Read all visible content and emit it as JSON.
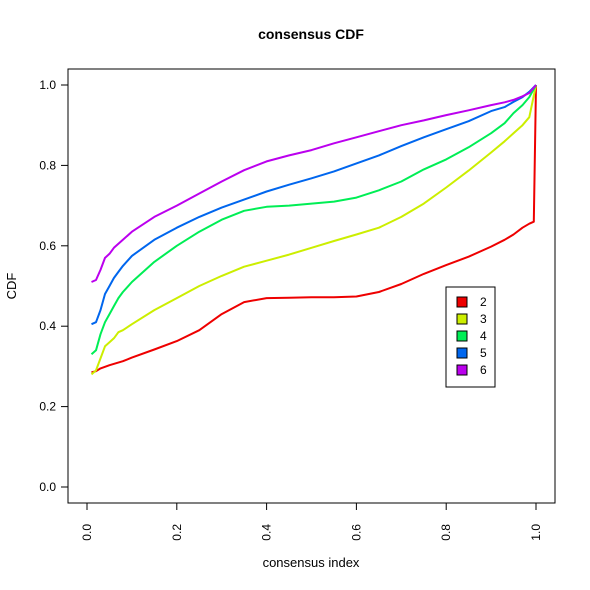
{
  "chart_data": {
    "type": "line",
    "title": "consensus CDF",
    "xlabel": "consensus index",
    "ylabel": "CDF",
    "xlim": [
      0,
      1
    ],
    "ylim": [
      0,
      1
    ],
    "x_ticks": [
      "0.0",
      "0.2",
      "0.4",
      "0.6",
      "0.8",
      "1.0"
    ],
    "y_ticks": [
      "0.0",
      "0.2",
      "0.4",
      "0.6",
      "0.8",
      "1.0"
    ],
    "grid": false,
    "legend_position": "right",
    "series": [
      {
        "name": "2",
        "color": "#ee0000",
        "x": [
          0.01,
          0.02,
          0.03,
          0.05,
          0.08,
          0.1,
          0.15,
          0.2,
          0.25,
          0.3,
          0.35,
          0.4,
          0.45,
          0.5,
          0.55,
          0.6,
          0.65,
          0.7,
          0.75,
          0.8,
          0.85,
          0.9,
          0.93,
          0.95,
          0.97,
          0.985,
          0.995,
          1.0
        ],
        "y": [
          0.285,
          0.288,
          0.295,
          0.303,
          0.313,
          0.322,
          0.342,
          0.363,
          0.39,
          0.43,
          0.46,
          0.47,
          0.471,
          0.472,
          0.472,
          0.474,
          0.485,
          0.505,
          0.53,
          0.552,
          0.573,
          0.598,
          0.615,
          0.628,
          0.645,
          0.655,
          0.66,
          1.0
        ]
      },
      {
        "name": "3",
        "color": "#ccee00",
        "x": [
          0.01,
          0.02,
          0.03,
          0.04,
          0.05,
          0.06,
          0.07,
          0.08,
          0.1,
          0.15,
          0.2,
          0.25,
          0.3,
          0.35,
          0.4,
          0.45,
          0.5,
          0.55,
          0.6,
          0.65,
          0.7,
          0.75,
          0.8,
          0.85,
          0.9,
          0.93,
          0.95,
          0.97,
          0.985,
          1.0
        ],
        "y": [
          0.28,
          0.29,
          0.32,
          0.35,
          0.36,
          0.37,
          0.385,
          0.39,
          0.405,
          0.44,
          0.47,
          0.5,
          0.525,
          0.548,
          0.563,
          0.578,
          0.595,
          0.612,
          0.628,
          0.645,
          0.672,
          0.705,
          0.745,
          0.787,
          0.832,
          0.86,
          0.88,
          0.9,
          0.92,
          1.0
        ]
      },
      {
        "name": "4",
        "color": "#00ee55",
        "x": [
          0.01,
          0.02,
          0.03,
          0.04,
          0.05,
          0.06,
          0.07,
          0.08,
          0.1,
          0.15,
          0.2,
          0.25,
          0.3,
          0.35,
          0.4,
          0.45,
          0.5,
          0.55,
          0.6,
          0.65,
          0.7,
          0.75,
          0.8,
          0.85,
          0.9,
          0.93,
          0.95,
          0.97,
          0.985,
          1.0
        ],
        "y": [
          0.33,
          0.34,
          0.38,
          0.41,
          0.43,
          0.45,
          0.47,
          0.485,
          0.51,
          0.56,
          0.6,
          0.635,
          0.665,
          0.687,
          0.697,
          0.7,
          0.705,
          0.71,
          0.72,
          0.738,
          0.76,
          0.79,
          0.815,
          0.845,
          0.88,
          0.905,
          0.93,
          0.95,
          0.97,
          1.0
        ]
      },
      {
        "name": "5",
        "color": "#0066ee",
        "x": [
          0.01,
          0.02,
          0.03,
          0.04,
          0.05,
          0.06,
          0.07,
          0.08,
          0.1,
          0.15,
          0.2,
          0.25,
          0.3,
          0.35,
          0.4,
          0.45,
          0.5,
          0.55,
          0.6,
          0.65,
          0.7,
          0.75,
          0.8,
          0.85,
          0.9,
          0.93,
          0.95,
          0.97,
          0.985,
          1.0
        ],
        "y": [
          0.405,
          0.41,
          0.44,
          0.48,
          0.5,
          0.52,
          0.535,
          0.55,
          0.575,
          0.615,
          0.645,
          0.672,
          0.695,
          0.715,
          0.735,
          0.752,
          0.768,
          0.785,
          0.805,
          0.825,
          0.848,
          0.87,
          0.89,
          0.91,
          0.935,
          0.945,
          0.958,
          0.97,
          0.983,
          1.0
        ]
      },
      {
        "name": "6",
        "color": "#bb00ee",
        "x": [
          0.01,
          0.02,
          0.03,
          0.04,
          0.05,
          0.06,
          0.07,
          0.08,
          0.1,
          0.15,
          0.2,
          0.25,
          0.3,
          0.35,
          0.4,
          0.45,
          0.5,
          0.55,
          0.6,
          0.65,
          0.7,
          0.75,
          0.8,
          0.85,
          0.9,
          0.93,
          0.95,
          0.97,
          0.985,
          1.0
        ],
        "y": [
          0.51,
          0.515,
          0.54,
          0.57,
          0.58,
          0.595,
          0.605,
          0.615,
          0.635,
          0.672,
          0.7,
          0.73,
          0.76,
          0.788,
          0.81,
          0.825,
          0.838,
          0.855,
          0.87,
          0.885,
          0.9,
          0.912,
          0.925,
          0.937,
          0.95,
          0.957,
          0.963,
          0.972,
          0.98,
          1.0
        ]
      }
    ]
  }
}
